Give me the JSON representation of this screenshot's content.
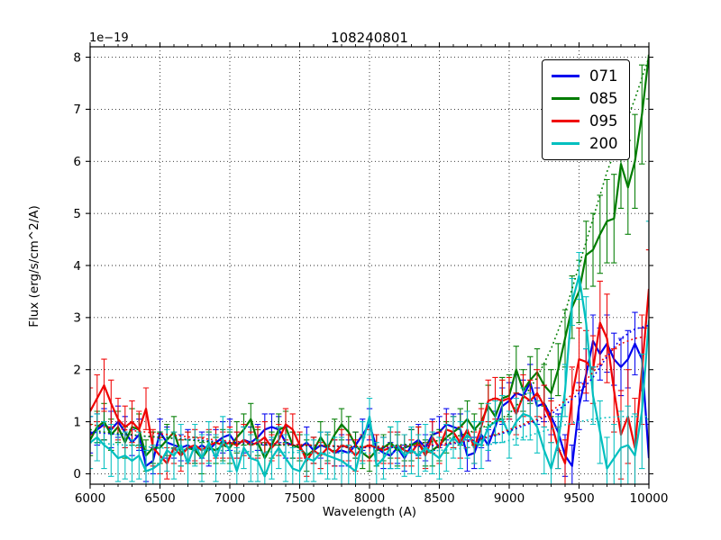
{
  "figure": {
    "title": "108240801",
    "offset_label": "1e−19",
    "xlabel": "Wavelength (A)",
    "ylabel": "Flux (erg/s/cm^2/A)",
    "background_color": "#ffffff",
    "frame_color": "#000000",
    "grid_color": "#000000"
  },
  "legend": {
    "position": "upper right",
    "entries": [
      "071",
      "085",
      "095",
      "200"
    ]
  },
  "chart_data": {
    "type": "line",
    "title": "108240801",
    "xlabel": "Wavelength (A)",
    "ylabel": "Flux (erg/s/cm^2/A)",
    "y_offset_factor": "1e-19",
    "grid": true,
    "legend_position": "upper right",
    "xlim": [
      6000,
      10000
    ],
    "ylim": [
      -0.2,
      8.2
    ],
    "xticks": [
      6000,
      6500,
      7000,
      7500,
      8000,
      8500,
      9000,
      9500,
      10000
    ],
    "x_minor_tick_step": 100,
    "yticks": [
      0,
      1,
      2,
      3,
      4,
      5,
      6,
      7,
      8
    ],
    "x": [
      6000,
      6050,
      6100,
      6150,
      6200,
      6250,
      6300,
      6350,
      6400,
      6450,
      6500,
      6550,
      6600,
      6650,
      6700,
      6750,
      6800,
      6850,
      6900,
      6950,
      7000,
      7050,
      7100,
      7150,
      7200,
      7250,
      7300,
      7350,
      7400,
      7450,
      7500,
      7550,
      7600,
      7650,
      7700,
      7750,
      7800,
      7850,
      7900,
      7950,
      8000,
      8050,
      8100,
      8150,
      8200,
      8250,
      8300,
      8350,
      8400,
      8450,
      8500,
      8550,
      8600,
      8650,
      8700,
      8750,
      8800,
      8850,
      8900,
      8950,
      9000,
      9050,
      9100,
      9150,
      9200,
      9250,
      9300,
      9350,
      9400,
      9450,
      9500,
      9550,
      9600,
      9650,
      9700,
      9750,
      9800,
      9850,
      9900,
      9950,
      10000
    ],
    "series": [
      {
        "name": "071",
        "color": "#0000ee",
        "style": "solid",
        "values": [
          0.75,
          0.85,
          0.95,
          0.85,
          1.0,
          0.8,
          0.6,
          0.75,
          0.15,
          0.25,
          0.8,
          0.6,
          0.55,
          0.5,
          0.55,
          0.45,
          0.55,
          0.45,
          0.6,
          0.7,
          0.75,
          0.55,
          0.65,
          0.6,
          0.7,
          0.85,
          0.9,
          0.85,
          0.6,
          0.55,
          0.5,
          0.6,
          0.45,
          0.55,
          0.5,
          0.4,
          0.45,
          0.4,
          0.55,
          0.75,
          0.95,
          0.5,
          0.4,
          0.35,
          0.5,
          0.3,
          0.55,
          0.65,
          0.5,
          0.75,
          0.8,
          0.95,
          0.9,
          0.85,
          0.35,
          0.4,
          0.75,
          0.55,
          0.9,
          1.3,
          1.4,
          1.55,
          1.5,
          1.75,
          1.3,
          1.35,
          1.1,
          0.8,
          0.35,
          0.15,
          1.3,
          1.9,
          2.55,
          2.3,
          2.5,
          2.2,
          2.05,
          2.2,
          2.5,
          2.2,
          0.3
        ],
        "errors": [
          0.35,
          0.3,
          0.3,
          0.35,
          0.3,
          0.3,
          0.25,
          0.3,
          0.3,
          0.25,
          0.25,
          0.3,
          0.25,
          0.25,
          0.3,
          0.25,
          0.25,
          0.3,
          0.25,
          0.3,
          0.3,
          0.25,
          0.25,
          0.3,
          0.25,
          0.3,
          0.25,
          0.25,
          0.3,
          0.25,
          0.25,
          0.3,
          0.25,
          0.25,
          0.3,
          0.25,
          0.3,
          0.25,
          0.25,
          0.3,
          0.3,
          0.25,
          0.3,
          0.25,
          0.3,
          0.25,
          0.3,
          0.3,
          0.25,
          0.3,
          0.3,
          0.3,
          0.25,
          0.3,
          0.3,
          0.3,
          0.25,
          0.3,
          0.3,
          0.35,
          0.35,
          0.35,
          0.3,
          0.35,
          0.35,
          0.35,
          0.35,
          0.35,
          0.4,
          0.4,
          0.45,
          0.5,
          0.5,
          0.5,
          0.55,
          0.5,
          0.55,
          0.55,
          0.6,
          0.6,
          0.65
        ]
      },
      {
        "name": "085",
        "color": "#007c00",
        "style": "solid",
        "values": [
          0.65,
          0.9,
          1.0,
          0.75,
          0.9,
          0.6,
          0.9,
          0.85,
          0.35,
          0.5,
          0.5,
          0.65,
          0.8,
          0.4,
          0.5,
          0.45,
          0.3,
          0.5,
          0.45,
          0.55,
          0.5,
          0.7,
          0.85,
          1.05,
          0.6,
          0.3,
          0.55,
          0.85,
          0.9,
          0.55,
          0.5,
          0.35,
          0.45,
          0.7,
          0.5,
          0.75,
          0.95,
          0.8,
          0.55,
          0.4,
          0.3,
          0.45,
          0.5,
          0.6,
          0.45,
          0.5,
          0.55,
          0.6,
          0.4,
          0.45,
          0.55,
          0.7,
          0.8,
          0.9,
          1.05,
          0.85,
          1.0,
          1.3,
          1.1,
          1.45,
          1.5,
          2.0,
          1.6,
          1.8,
          1.95,
          1.7,
          1.55,
          2.0,
          2.6,
          3.2,
          3.5,
          4.2,
          4.3,
          4.6,
          4.85,
          4.9,
          5.95,
          5.5,
          6.0,
          6.9,
          8.05
        ],
        "errors": [
          0.3,
          0.3,
          0.35,
          0.3,
          0.3,
          0.3,
          0.35,
          0.3,
          0.3,
          0.3,
          0.3,
          0.3,
          0.3,
          0.25,
          0.3,
          0.25,
          0.3,
          0.3,
          0.25,
          0.3,
          0.3,
          0.3,
          0.3,
          0.3,
          0.25,
          0.3,
          0.25,
          0.3,
          0.3,
          0.25,
          0.25,
          0.3,
          0.25,
          0.3,
          0.25,
          0.3,
          0.3,
          0.3,
          0.25,
          0.3,
          0.25,
          0.3,
          0.25,
          0.3,
          0.3,
          0.25,
          0.3,
          0.3,
          0.25,
          0.3,
          0.3,
          0.3,
          0.3,
          0.35,
          0.35,
          0.3,
          0.35,
          0.4,
          0.35,
          0.4,
          0.4,
          0.45,
          0.4,
          0.45,
          0.45,
          0.4,
          0.45,
          0.5,
          0.55,
          0.6,
          0.6,
          0.65,
          0.7,
          0.75,
          0.8,
          0.85,
          0.85,
          0.9,
          0.9,
          0.95,
          0.85
        ]
      },
      {
        "name": "095",
        "color": "#f00000",
        "style": "solid",
        "values": [
          1.2,
          1.45,
          1.7,
          1.35,
          1.05,
          0.9,
          1.0,
          0.85,
          1.25,
          0.5,
          0.35,
          0.2,
          0.5,
          0.35,
          0.5,
          0.55,
          0.45,
          0.55,
          0.6,
          0.55,
          0.6,
          0.55,
          0.65,
          0.55,
          0.6,
          0.7,
          0.5,
          0.65,
          0.95,
          0.85,
          0.55,
          0.25,
          0.45,
          0.35,
          0.5,
          0.4,
          0.55,
          0.5,
          0.35,
          0.5,
          0.55,
          0.5,
          0.45,
          0.5,
          0.55,
          0.45,
          0.4,
          0.6,
          0.35,
          0.7,
          0.5,
          0.85,
          0.8,
          0.6,
          0.85,
          0.5,
          0.9,
          1.4,
          1.45,
          1.4,
          1.45,
          1.15,
          1.5,
          1.4,
          1.55,
          1.3,
          1.0,
          0.5,
          0.2,
          1.5,
          2.2,
          2.15,
          2.0,
          2.9,
          2.6,
          1.6,
          0.75,
          1.1,
          0.5,
          2.0,
          3.55
        ],
        "errors": [
          0.45,
          0.45,
          0.5,
          0.45,
          0.4,
          0.4,
          0.4,
          0.35,
          0.4,
          0.35,
          0.35,
          0.3,
          0.3,
          0.3,
          0.3,
          0.3,
          0.25,
          0.3,
          0.3,
          0.25,
          0.3,
          0.25,
          0.3,
          0.25,
          0.3,
          0.3,
          0.25,
          0.3,
          0.3,
          0.3,
          0.25,
          0.3,
          0.25,
          0.25,
          0.3,
          0.25,
          0.3,
          0.25,
          0.3,
          0.25,
          0.3,
          0.25,
          0.25,
          0.3,
          0.25,
          0.3,
          0.25,
          0.3,
          0.25,
          0.3,
          0.3,
          0.3,
          0.3,
          0.3,
          0.35,
          0.3,
          0.35,
          0.4,
          0.4,
          0.4,
          0.4,
          0.4,
          0.4,
          0.4,
          0.45,
          0.4,
          0.4,
          0.4,
          0.45,
          0.55,
          0.6,
          0.6,
          0.65,
          0.8,
          0.85,
          0.8,
          0.85,
          0.9,
          0.95,
          1.05,
          0.75
        ]
      },
      {
        "name": "200",
        "color": "#00bfbf",
        "style": "solid",
        "values": [
          0.6,
          0.7,
          0.55,
          0.45,
          0.3,
          0.35,
          0.25,
          0.35,
          0.05,
          0.1,
          0.2,
          0.45,
          0.35,
          0.55,
          0.2,
          0.55,
          0.3,
          0.6,
          0.3,
          0.65,
          0.45,
          0.05,
          0.5,
          0.3,
          0.25,
          -0.05,
          0.3,
          0.5,
          0.3,
          0.1,
          0.05,
          0.3,
          0.25,
          0.4,
          0.35,
          0.3,
          0.25,
          0.15,
          0.05,
          0.6,
          1.1,
          0.15,
          0.3,
          0.5,
          0.55,
          0.35,
          0.45,
          0.35,
          0.5,
          0.4,
          0.3,
          0.5,
          0.7,
          0.55,
          0.75,
          0.6,
          0.55,
          0.9,
          1.0,
          1.05,
          0.75,
          1.0,
          1.15,
          1.1,
          0.9,
          0.45,
          0.1,
          0.6,
          1.6,
          3.3,
          3.8,
          2.9,
          1.5,
          0.8,
          0.1,
          0.3,
          0.5,
          0.55,
          0.35,
          1.2,
          2.95
        ],
        "errors": [
          0.5,
          0.45,
          0.45,
          0.5,
          0.45,
          0.45,
          0.4,
          0.45,
          0.4,
          0.45,
          0.45,
          0.4,
          0.45,
          0.4,
          0.45,
          0.4,
          0.45,
          0.4,
          0.45,
          0.45,
          0.4,
          0.45,
          0.4,
          0.45,
          0.4,
          0.45,
          0.4,
          0.4,
          0.45,
          0.4,
          0.4,
          0.45,
          0.4,
          0.4,
          0.45,
          0.4,
          0.45,
          0.4,
          0.45,
          0.4,
          0.35,
          0.45,
          0.4,
          0.4,
          0.45,
          0.4,
          0.45,
          0.4,
          0.45,
          0.4,
          0.4,
          0.45,
          0.4,
          0.45,
          0.45,
          0.4,
          0.45,
          0.45,
          0.4,
          0.45,
          0.45,
          0.45,
          0.5,
          0.45,
          0.5,
          0.45,
          0.5,
          0.5,
          0.5,
          0.45,
          0.45,
          0.5,
          0.55,
          0.6,
          0.6,
          0.65,
          0.7,
          0.75,
          0.8,
          1.1,
          1.9
        ]
      }
    ],
    "model_x": [
      6000,
      6100,
      6200,
      6300,
      6400,
      6500,
      6600,
      6700,
      6800,
      6900,
      7000,
      7100,
      7200,
      7300,
      7400,
      7500,
      7600,
      7700,
      7800,
      7900,
      8000,
      8100,
      8200,
      8300,
      8400,
      8500,
      8600,
      8700,
      8800,
      8900,
      9000,
      9100,
      9200,
      9300,
      9400,
      9500,
      9600,
      9700,
      9800,
      9900,
      10000
    ],
    "model_series": [
      {
        "name": "071-model",
        "color": "#0000ee",
        "style": "dotted",
        "values": [
          0.8,
          0.78,
          0.76,
          0.74,
          0.72,
          0.7,
          0.68,
          0.66,
          0.64,
          0.62,
          0.6,
          0.59,
          0.58,
          0.57,
          0.56,
          0.55,
          0.54,
          0.53,
          0.52,
          0.51,
          0.5,
          0.5,
          0.51,
          0.52,
          0.53,
          0.55,
          0.58,
          0.62,
          0.67,
          0.73,
          0.82,
          0.92,
          1.02,
          1.15,
          1.32,
          1.55,
          1.85,
          2.25,
          2.6,
          2.78,
          2.85
        ]
      },
      {
        "name": "085-model",
        "color": "#007c00",
        "style": "dotted",
        "values": [
          0.85,
          0.8,
          0.78,
          0.75,
          0.72,
          0.7,
          0.68,
          0.65,
          0.63,
          0.6,
          0.58,
          0.57,
          0.56,
          0.55,
          0.55,
          0.54,
          0.54,
          0.53,
          0.53,
          0.52,
          0.52,
          0.53,
          0.55,
          0.57,
          0.6,
          0.64,
          0.7,
          0.78,
          0.88,
          1.0,
          1.15,
          1.45,
          1.85,
          2.4,
          3.1,
          4.0,
          4.9,
          5.8,
          6.5,
          7.2,
          8.0
        ]
      },
      {
        "name": "095-model",
        "color": "#f00000",
        "style": "dotted",
        "values": [
          0.95,
          0.9,
          0.87,
          0.83,
          0.8,
          0.77,
          0.74,
          0.71,
          0.68,
          0.65,
          0.63,
          0.61,
          0.6,
          0.58,
          0.57,
          0.56,
          0.55,
          0.54,
          0.53,
          0.52,
          0.52,
          0.52,
          0.53,
          0.54,
          0.55,
          0.57,
          0.6,
          0.63,
          0.68,
          0.75,
          0.85,
          0.95,
          1.05,
          1.2,
          1.4,
          1.65,
          1.95,
          2.3,
          2.5,
          2.6,
          2.65
        ]
      },
      {
        "name": "200-model",
        "color": "#00bfbf",
        "style": "dotted",
        "values": [
          0.6,
          0.58,
          0.56,
          0.54,
          0.52,
          0.5,
          0.48,
          0.47,
          0.46,
          0.45,
          0.44,
          0.43,
          0.42,
          0.42,
          0.41,
          0.41,
          0.4,
          0.4,
          0.4,
          0.4,
          0.4,
          0.4,
          0.41,
          0.42,
          0.43,
          0.45,
          0.47,
          0.5,
          0.54,
          0.58,
          0.64,
          0.7,
          0.78,
          0.86,
          0.94,
          1.0,
          1.05,
          1.08,
          1.1,
          1.1,
          1.1
        ]
      }
    ]
  }
}
